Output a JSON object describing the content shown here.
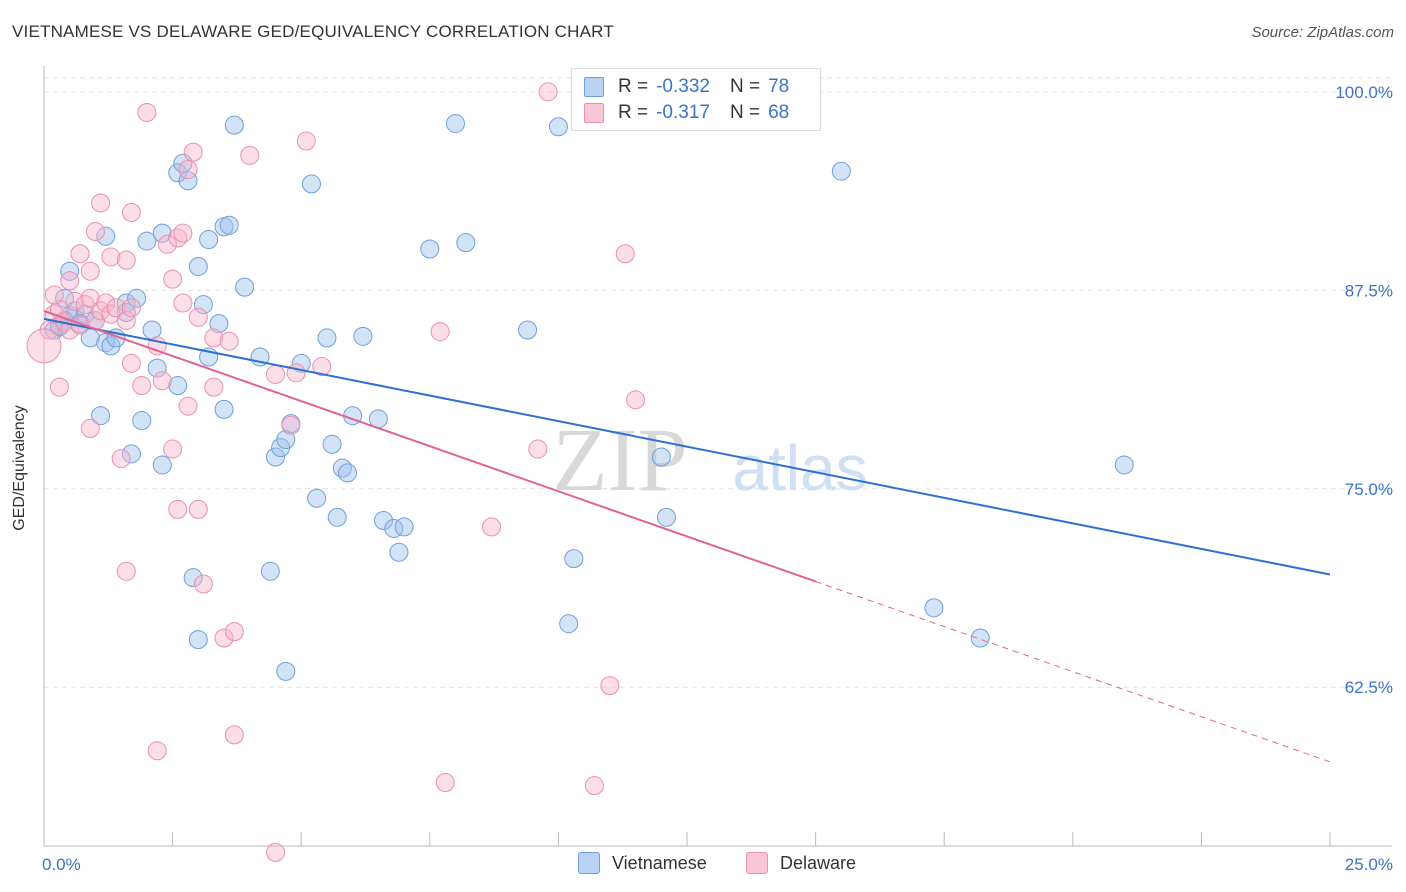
{
  "title": "VIETNAMESE VS DELAWARE GED/EQUIVALENCY CORRELATION CHART",
  "source": "Source: ZipAtlas.com",
  "watermark": {
    "zip": "ZIP",
    "atlas": "atlas"
  },
  "legend": {
    "r_label": "R =",
    "n_label": "N =",
    "rows": [
      {
        "r": "-0.332",
        "n": "78"
      },
      {
        "r": "-0.317",
        "n": "68"
      }
    ]
  },
  "chart_data": {
    "type": "scatter",
    "title": "VIETNAMESE VS DELAWARE GED/EQUIVALENCY CORRELATION CHART",
    "xlabel": "",
    "ylabel": "GED/Equivalency",
    "xlim": [
      0,
      25
    ],
    "ylim": [
      52.5,
      101.5
    ],
    "x_tick_labels": [
      {
        "value": 0,
        "label": "0.0%"
      },
      {
        "value": 25,
        "label": "25.0%"
      }
    ],
    "y_tick_labels": [
      {
        "value": 62.5,
        "label": "62.5%"
      },
      {
        "value": 75,
        "label": "75.0%"
      },
      {
        "value": 87.5,
        "label": "87.5%"
      },
      {
        "value": 100,
        "label": "100.0%"
      }
    ],
    "series": [
      {
        "name": "Vietnamese",
        "color": "#9dc0ec",
        "edge": "#6f9fdb",
        "line_color": "#2e6fcf",
        "trend": {
          "x0": 0,
          "y0": 85.7,
          "x1": 25,
          "y1": 69.6,
          "solid_to": 25
        },
        "points": [
          [
            0.4,
            85.6
          ],
          [
            0.3,
            85.3
          ],
          [
            0.2,
            85.0
          ],
          [
            0.5,
            85.9
          ],
          [
            0.6,
            86.2
          ],
          [
            0.8,
            86.0
          ],
          [
            0.7,
            85.4
          ],
          [
            0.9,
            84.5
          ],
          [
            1.0,
            85.6
          ],
          [
            1.2,
            84.2
          ],
          [
            1.3,
            84.0
          ],
          [
            1.4,
            84.5
          ],
          [
            1.6,
            86.7
          ],
          [
            1.8,
            87.0
          ],
          [
            2.1,
            85.0
          ],
          [
            0.5,
            88.7
          ],
          [
            0.4,
            87.0
          ],
          [
            1.2,
            90.9
          ],
          [
            2.0,
            90.6
          ],
          [
            2.3,
            91.1
          ],
          [
            2.6,
            94.9
          ],
          [
            2.8,
            94.4
          ],
          [
            2.7,
            95.5
          ],
          [
            3.0,
            89.0
          ],
          [
            3.2,
            90.7
          ],
          [
            3.5,
            91.5
          ],
          [
            3.6,
            91.6
          ],
          [
            3.7,
            97.9
          ],
          [
            3.9,
            87.7
          ],
          [
            3.1,
            86.6
          ],
          [
            3.4,
            85.4
          ],
          [
            1.1,
            79.6
          ],
          [
            1.9,
            79.3
          ],
          [
            2.2,
            82.6
          ],
          [
            2.6,
            81.5
          ],
          [
            2.3,
            76.5
          ],
          [
            1.7,
            77.2
          ],
          [
            3.2,
            83.3
          ],
          [
            3.5,
            80.0
          ],
          [
            4.2,
            83.3
          ],
          [
            4.5,
            77.0
          ],
          [
            4.6,
            77.6
          ],
          [
            4.7,
            78.1
          ],
          [
            4.8,
            79.1
          ],
          [
            5.0,
            82.9
          ],
          [
            5.2,
            94.2
          ],
          [
            5.3,
            74.4
          ],
          [
            5.5,
            84.5
          ],
          [
            5.6,
            77.8
          ],
          [
            5.7,
            73.2
          ],
          [
            5.8,
            76.3
          ],
          [
            5.9,
            76.0
          ],
          [
            6.0,
            79.6
          ],
          [
            6.2,
            84.6
          ],
          [
            6.5,
            79.4
          ],
          [
            6.6,
            73.0
          ],
          [
            6.8,
            72.5
          ],
          [
            6.9,
            71.0
          ],
          [
            7.0,
            72.6
          ],
          [
            7.5,
            90.1
          ],
          [
            4.4,
            69.8
          ],
          [
            2.9,
            69.4
          ],
          [
            3.0,
            65.5
          ],
          [
            4.7,
            63.5
          ],
          [
            8.0,
            98.0
          ],
          [
            8.2,
            90.5
          ],
          [
            9.4,
            85.0
          ],
          [
            10.0,
            97.8
          ],
          [
            10.3,
            70.6
          ],
          [
            10.2,
            66.5
          ],
          [
            12.0,
            77.0
          ],
          [
            12.1,
            73.2
          ],
          [
            15.5,
            95.0
          ],
          [
            17.3,
            67.5
          ],
          [
            18.2,
            65.6
          ],
          [
            21.0,
            76.5
          ],
          [
            0.3,
            85.2
          ],
          [
            1.6,
            86.1
          ]
        ]
      },
      {
        "name": "Delaware",
        "color": "#f7b6cb",
        "edge": "#eb8fae",
        "line_color": "#e0648f",
        "trend": {
          "x0": 0,
          "y0": 86.2,
          "x1": 25,
          "y1": 57.8,
          "solid_to": 15
        },
        "points": [
          [
            0.1,
            85.0
          ],
          [
            0.2,
            86.0
          ],
          [
            0.3,
            86.3
          ],
          [
            0.4,
            85.5
          ],
          [
            0.5,
            85.0
          ],
          [
            0.6,
            86.8
          ],
          [
            0.7,
            85.3
          ],
          [
            0.8,
            86.6
          ],
          [
            0.9,
            87.0
          ],
          [
            1.0,
            85.6
          ],
          [
            1.1,
            86.2
          ],
          [
            1.2,
            86.7
          ],
          [
            1.3,
            86.0
          ],
          [
            1.4,
            86.4
          ],
          [
            1.6,
            85.6
          ],
          [
            1.7,
            86.4
          ],
          [
            0.2,
            87.2
          ],
          [
            0.5,
            88.1
          ],
          [
            0.7,
            89.8
          ],
          [
            0.9,
            88.7
          ],
          [
            1.0,
            91.2
          ],
          [
            1.1,
            93.0
          ],
          [
            1.3,
            89.6
          ],
          [
            1.6,
            89.4
          ],
          [
            1.7,
            92.4
          ],
          [
            2.0,
            98.7
          ],
          [
            2.4,
            90.4
          ],
          [
            2.5,
            88.2
          ],
          [
            2.6,
            90.8
          ],
          [
            2.7,
            91.1
          ],
          [
            2.8,
            95.1
          ],
          [
            2.9,
            96.2
          ],
          [
            2.7,
            86.7
          ],
          [
            3.0,
            85.8
          ],
          [
            3.3,
            84.5
          ],
          [
            0.3,
            81.4
          ],
          [
            0.9,
            78.8
          ],
          [
            1.5,
            76.9
          ],
          [
            1.7,
            82.9
          ],
          [
            1.9,
            81.5
          ],
          [
            2.2,
            84.0
          ],
          [
            2.3,
            81.8
          ],
          [
            2.5,
            77.5
          ],
          [
            2.6,
            73.7
          ],
          [
            2.8,
            80.2
          ],
          [
            3.0,
            73.7
          ],
          [
            3.3,
            81.4
          ],
          [
            3.6,
            84.3
          ],
          [
            4.0,
            96.0
          ],
          [
            4.5,
            82.2
          ],
          [
            4.8,
            79.0
          ],
          [
            4.9,
            82.3
          ],
          [
            5.1,
            96.9
          ],
          [
            5.4,
            82.7
          ],
          [
            1.6,
            69.8
          ],
          [
            3.1,
            69.0
          ],
          [
            3.5,
            65.6
          ],
          [
            3.7,
            66.0
          ],
          [
            2.2,
            58.5
          ],
          [
            3.7,
            59.5
          ],
          [
            7.7,
            84.9
          ],
          [
            8.7,
            72.6
          ],
          [
            9.6,
            77.5
          ],
          [
            11.3,
            89.8
          ],
          [
            11.5,
            80.6
          ],
          [
            11.0,
            62.6
          ],
          [
            9.8,
            100.0
          ],
          [
            0.0,
            84.0
          ]
        ],
        "extra_points": [
          [
            7.8,
            56.5
          ],
          [
            10.7,
            56.3
          ],
          [
            4.5,
            52.1
          ]
        ]
      }
    ]
  },
  "bottom_legend": [
    "Vietnamese",
    "Delaware"
  ]
}
